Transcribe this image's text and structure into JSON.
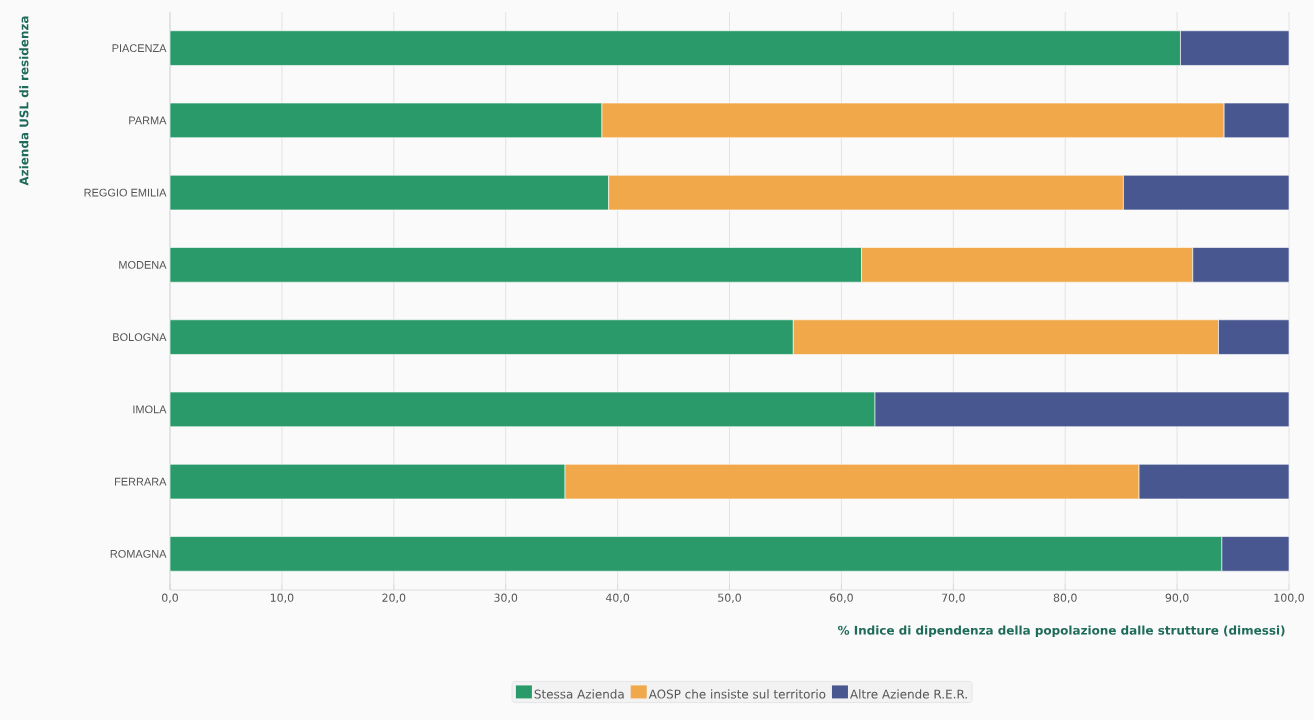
{
  "chart_data": {
    "type": "bar",
    "orientation": "horizontal",
    "stacked": true,
    "xlabel": "% Indice di dipendenza della popolazione dalle strutture (dimessi)",
    "ylabel": "Azienda USL di residenza",
    "categories": [
      "PIACENZA",
      "PARMA",
      "REGGIO EMILIA",
      "MODENA",
      "BOLOGNA",
      "IMOLA",
      "FERRARA",
      "ROMAGNA"
    ],
    "series": [
      {
        "name": "Stessa Azienda",
        "color": "#2a9a6b",
        "values": [
          90.3,
          38.6,
          39.2,
          61.8,
          55.7,
          63.0,
          35.3,
          94.0
        ]
      },
      {
        "name": "AOSP che insiste sul territorio",
        "color": "#f0a84a",
        "values": [
          null,
          55.6,
          46.0,
          29.6,
          38.0,
          null,
          51.3,
          null
        ]
      },
      {
        "name": "Altre Aziende R.E.R.",
        "color": "#48578f",
        "values": [
          9.7,
          5.8,
          14.8,
          8.6,
          6.3,
          37.0,
          13.4,
          6.0
        ]
      }
    ],
    "xlim": [
      0,
      100
    ],
    "xticks": [
      {
        "value": 0,
        "label": "0,0"
      },
      {
        "value": 10,
        "label": "10,0"
      },
      {
        "value": 20,
        "label": "20,0"
      },
      {
        "value": 30,
        "label": "30,0"
      },
      {
        "value": 40,
        "label": "40,0"
      },
      {
        "value": 50,
        "label": "50,0"
      },
      {
        "value": 60,
        "label": "60,0"
      },
      {
        "value": 70,
        "label": "70,0"
      },
      {
        "value": 80,
        "label": "80,0"
      },
      {
        "value": 90,
        "label": "90,0"
      },
      {
        "value": 100,
        "label": "100,0"
      }
    ],
    "grid": "x",
    "legend": "bottom"
  }
}
